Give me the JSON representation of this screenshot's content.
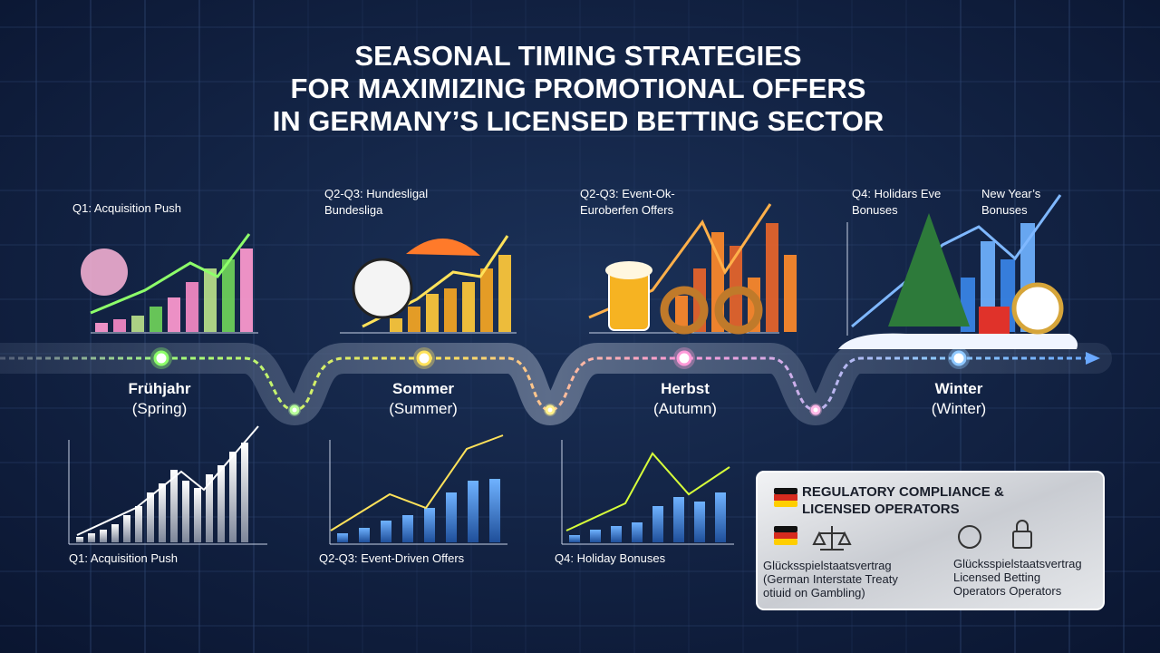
{
  "header": {
    "title": [
      "SEASONAL TIMING STRATEGIES",
      "FOR MAXIMIZING PROMOTIONAL OFFERS",
      "IN GERMANY’S LICENSED BETTING SECTOR"
    ]
  },
  "top_captions": [
    [
      "Q1: Acquisition Push"
    ],
    [
      "Q2-Q3: Hundesligal",
      "Bundesliga"
    ],
    [
      "Q2-Q3: Event-Ok-",
      "Euroberfen Offers"
    ],
    [
      "Q4: Holidars Eve",
      "Bonuses"
    ],
    [
      "New Year’s",
      "Bonuses"
    ]
  ],
  "seasons": [
    {
      "name": "Frühjahr",
      "sub": "(Spring)"
    },
    {
      "name": "Sommer",
      "sub": "(Summer)"
    },
    {
      "name": "Herbst",
      "sub": "(Autumn)"
    },
    {
      "name": "Winter",
      "sub": "(Winter)"
    }
  ],
  "bottom_captions": [
    "Q1: Acquisition Push",
    "Q2-Q3: Event-Driven Offers",
    "Q4: Holiday Bonuses"
  ],
  "compliance": {
    "title": [
      "REGULATORY COMPLIANCE &",
      "LICENSED OPERATORS"
    ],
    "left": [
      "Glücksspielstaatsvertrag",
      "(German Interstate Treaty",
      "otiuid on Gambling)"
    ],
    "right": [
      "Glücksspielstaatsvertrag",
      "Licensed Betting",
      "Operators Operators"
    ]
  }
}
